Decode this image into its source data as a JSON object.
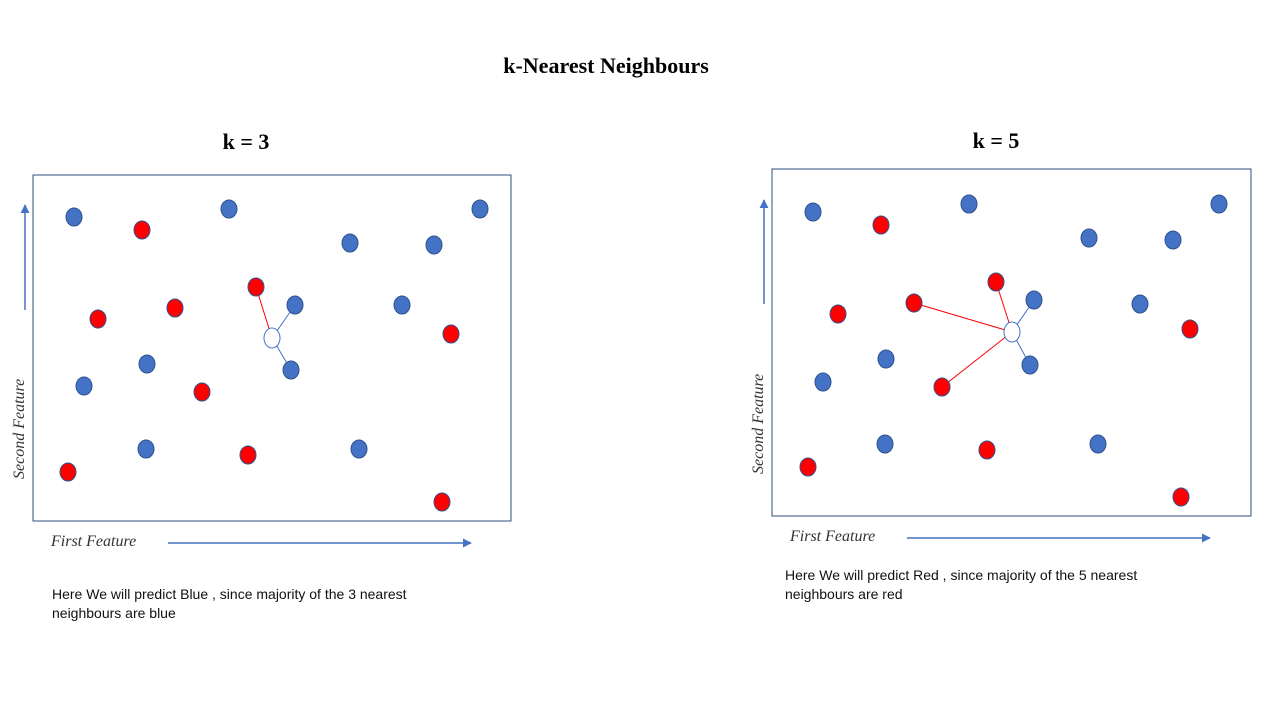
{
  "title": "k-Nearest Neighbours",
  "panels": [
    {
      "heading": "k = 3",
      "y_axis_label": "Second Feature",
      "x_axis_label": "First Feature",
      "caption": "Here We will predict Blue , since majority of the 3 nearest neighbours are blue"
    },
    {
      "heading": "k = 5",
      "y_axis_label": "Second Feature",
      "x_axis_label": "First Feature",
      "caption": "Here We will predict Red , since majority of the 5 nearest neighbours are red"
    }
  ]
}
